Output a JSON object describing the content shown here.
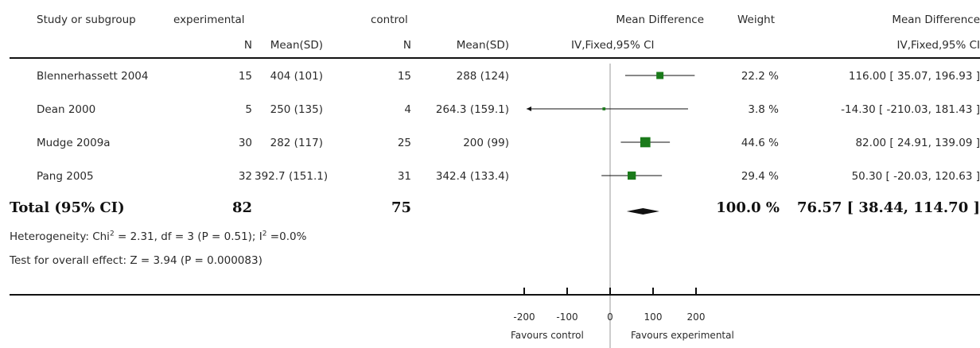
{
  "header": {
    "study_or_subgroup": "Study or subgroup",
    "experimental": "experimental",
    "control": "control",
    "mean_difference": "Mean Difference",
    "weight": "Weight",
    "mean_difference_right": "Mean Difference",
    "n_exp": "N",
    "meansd_exp": "Mean(SD)",
    "n_ctrl": "N",
    "meansd_ctrl": "Mean(SD)",
    "method": "IV,Fixed,95% CI",
    "method_right": "IV,Fixed,95% CI"
  },
  "rows": [
    {
      "study": "Blennerhassett 2004",
      "n_exp": "15",
      "meansd_exp": "404 (101)",
      "n_ctrl": "15",
      "meansd_ctrl": "288 (124)",
      "weight": "22.2 %",
      "ci_text": "116.00 [ 35.07, 196.93 ]"
    },
    {
      "study": "Dean 2000",
      "n_exp": "5",
      "meansd_exp": "250 (135)",
      "n_ctrl": "4",
      "meansd_ctrl": "264.3 (159.1)",
      "weight": "3.8 %",
      "ci_text": "-14.30 [ -210.03, 181.43 ]"
    },
    {
      "study": "Mudge 2009a",
      "n_exp": "30",
      "meansd_exp": "282 (117)",
      "n_ctrl": "25",
      "meansd_ctrl": "200 (99)",
      "weight": "44.6 %",
      "ci_text": "82.00 [ 24.91, 139.09 ]"
    },
    {
      "study": "Pang 2005",
      "n_exp": "32",
      "meansd_exp": "392.7 (151.1)",
      "n_ctrl": "31",
      "meansd_ctrl": "342.4 (133.4)",
      "weight": "29.4 %",
      "ci_text": "50.30 [ -20.03, 120.63 ]"
    }
  ],
  "total": {
    "label": "Total (95% CI)",
    "n_exp": "82",
    "n_ctrl": "75",
    "weight": "100.0 %",
    "ci_text": "76.57 [ 38.44, 114.70 ]"
  },
  "heterogeneity": {
    "prefix": "Heterogeneity: Chi",
    "sup1": "2",
    "middle": " = 2.31, df = 3 (P = 0.51); I",
    "sup2": "2",
    "suffix": " =0.0%"
  },
  "overall_effect": "Test for overall effect: Z = 3.94 (P = 0.000083)",
  "axis": {
    "favours_left": "Favours control",
    "favours_right": "Favours experimental"
  },
  "chart_data": {
    "type": "forest",
    "xlim": [
      -200,
      200
    ],
    "ticks": [
      -200,
      -100,
      0,
      100,
      200
    ],
    "studies": [
      {
        "name": "Blennerhassett 2004",
        "md": 116.0,
        "lo": 35.07,
        "hi": 196.93,
        "weight": 22.2
      },
      {
        "name": "Dean 2000",
        "md": -14.3,
        "lo": -210.03,
        "hi": 181.43,
        "weight": 3.8
      },
      {
        "name": "Mudge 2009a",
        "md": 82.0,
        "lo": 24.91,
        "hi": 139.09,
        "weight": 44.6
      },
      {
        "name": "Pang 2005",
        "md": 50.3,
        "lo": -20.03,
        "hi": 120.63,
        "weight": 29.4
      }
    ],
    "pooled": {
      "md": 76.57,
      "lo": 38.44,
      "hi": 114.7
    },
    "marker_color": "#1a7a1a"
  }
}
